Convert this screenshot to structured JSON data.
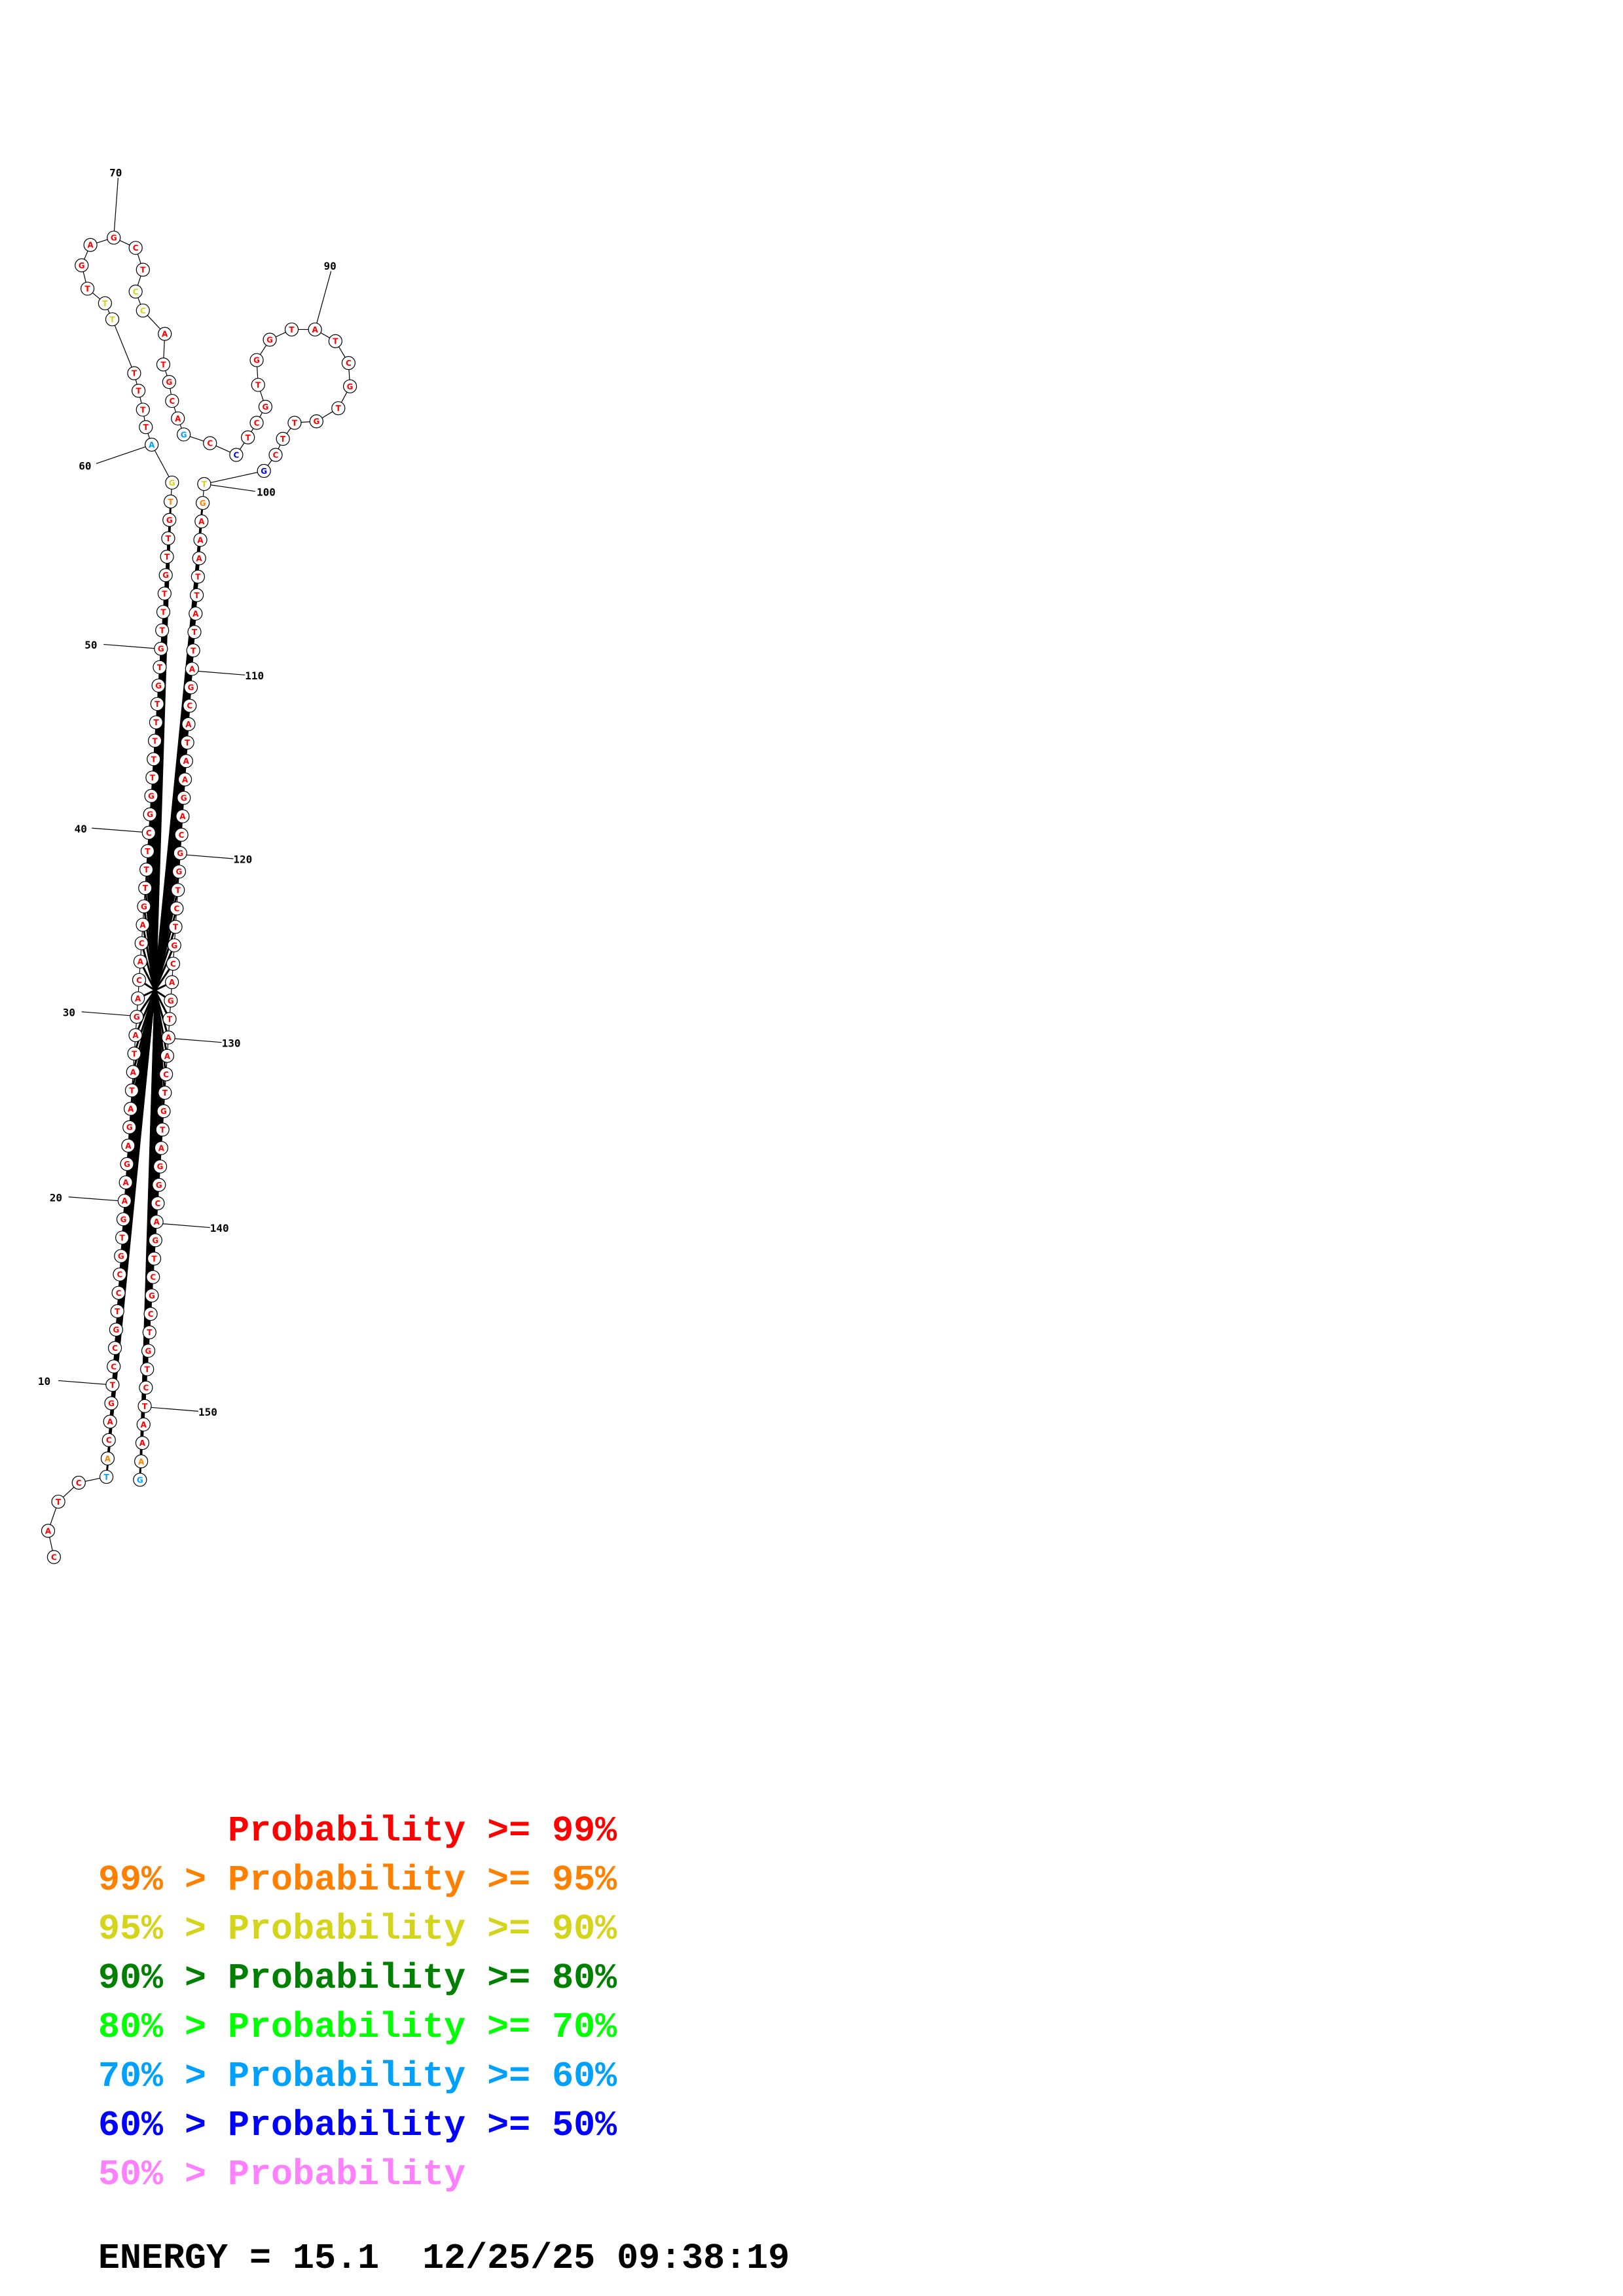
{
  "colors": {
    "p99": "#ff0000",
    "p95": "#ff8000",
    "p90": "#d4d41a",
    "p80": "#008000",
    "p70": "#00ff00",
    "p60": "#00a0ff",
    "p50": "#0000ff",
    "p0": "#ff80ff"
  },
  "sequence": "CATCTACAGTCCGTCCGTGAAGAGATATAGACACAGTTTCGGTTTTTGTGTTTGTTGTGATTTTTTTGAGCTCCATGCAGCCTCGTGGTATCGTGTTCGTGAAATTATTAGCATAAGACGGTCTGCAGTAACTGTAGGCAGTCGCTGTCTAAAGA",
  "positions": {
    "n10": "10",
    "n20": "20",
    "n30": "30",
    "n40": "40",
    "n50": "50",
    "n60": "60",
    "n70": "70",
    "n90": "90",
    "n100": "100",
    "n110": "110",
    "n120": "120",
    "n130": "130",
    "n140": "140",
    "n150": "150"
  },
  "legend": [
    {
      "prefix": "    ",
      "text": "Probability >= 99%",
      "color": "#ff0000"
    },
    {
      "prefix": "99% > ",
      "text": "Probability >= 95%",
      "color": "#ff8000"
    },
    {
      "prefix": "95% > ",
      "text": "Probability >= 90%",
      "color": "#d4d41a"
    },
    {
      "prefix": "90% > ",
      "text": "Probability >= 80%",
      "color": "#008000"
    },
    {
      "prefix": "80% > ",
      "text": "Probability >= 70%",
      "color": "#00ff00"
    },
    {
      "prefix": "70% > ",
      "text": "Probability >= 60%",
      "color": "#00a0ff"
    },
    {
      "prefix": "60% > ",
      "text": "Probability >= 50%",
      "color": "#0000ff"
    },
    {
      "prefix": "50% > ",
      "text": "Probability",
      "color": "#ff80ff"
    }
  ],
  "energy": "ENERGY = 15.1  12/25/25 09:38:19"
}
